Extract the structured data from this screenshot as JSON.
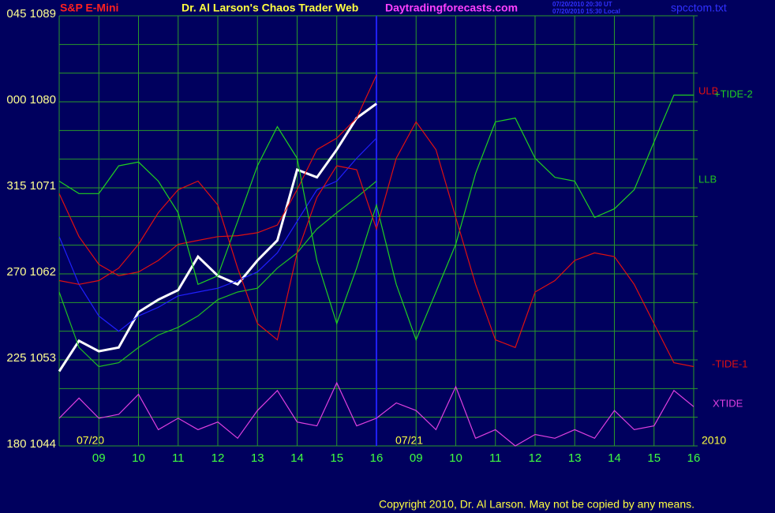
{
  "chart_data": {
    "type": "line",
    "instrument": "S&P E-Mini",
    "title": "Dr. Al Larson's Chaos Trader Web",
    "website": "Daytradingforecasts.com",
    "timestamps": [
      "07/20/2010 20:30 UT",
      "07/20/2010 15:30 Local"
    ],
    "file": "spcctom.txt",
    "date_labels": [
      "07/20",
      "07/21"
    ],
    "year": "2010",
    "copyright": "Copyright 2010, Dr. Al Larson. May not be copied by any means.",
    "x": [
      8,
      8.5,
      9,
      9.5,
      10,
      10.5,
      11,
      11.5,
      12,
      12.5,
      13,
      13.5,
      14,
      14.5,
      15,
      15.5,
      16,
      16.5,
      17,
      17.5,
      18,
      18.5,
      19,
      19.5,
      20,
      20.5,
      21,
      21.5,
      22,
      22.5,
      23,
      23.5,
      24
    ],
    "xlim": [
      8,
      24.1
    ],
    "xticks": [
      {
        "value": 9,
        "label": "09"
      },
      10,
      11,
      12,
      13,
      14,
      15,
      16,
      {
        "value": 17,
        "label": "09"
      },
      {
        "value": 18,
        "label": "10"
      },
      {
        "value": 19,
        "label": "11"
      },
      {
        "value": 20,
        "label": "12"
      },
      {
        "value": 21,
        "label": "13"
      },
      {
        "value": 22,
        "label": "14"
      },
      {
        "value": 23,
        "label": "15"
      },
      {
        "value": 24,
        "label": "16"
      }
    ],
    "ylim": [
      1044,
      1089
    ],
    "yticks": [
      {
        "value": 1089,
        "label": "045 1089"
      },
      {
        "value": 1080,
        "label": "000 1080"
      },
      {
        "value": 1071,
        "label": "315 1071"
      },
      {
        "value": 1062,
        "label": "270 1062"
      },
      {
        "value": 1053,
        "label": "225 1053"
      },
      {
        "value": 1044,
        "label": "180 1044"
      }
    ],
    "ygrid": [
      1044,
      1047,
      1050,
      1053,
      1056,
      1059,
      1062,
      1065,
      1068,
      1071,
      1074,
      1077,
      1080,
      1083,
      1086,
      1089
    ],
    "grid": true,
    "now_x": 16,
    "series": [
      {
        "color": "#ffffff",
        "values": [
          1051.8,
          1055.0,
          1053.9,
          1054.3,
          1058.0,
          1059.3,
          1060.3,
          1063.8,
          1061.8,
          1060.9,
          1063.4,
          1065.5,
          1072.9,
          1072.1,
          1075.0,
          1078.3,
          1079.8,
          null,
          null,
          null,
          null,
          null,
          null,
          null,
          null,
          null,
          null,
          null,
          null,
          null,
          null,
          null,
          null
        ]
      },
      {
        "color": "#2020ff",
        "values": [
          1065.9,
          1060.9,
          1057.6,
          1056.0,
          1057.6,
          1058.5,
          1059.7,
          1060.1,
          1060.5,
          1061.3,
          1062.2,
          1064.2,
          1067.5,
          1070.8,
          1071.7,
          1074.1,
          1076.2,
          null,
          null,
          null,
          null,
          null,
          null,
          null,
          null,
          null,
          null,
          null,
          null,
          null,
          null,
          null,
          null
        ]
      },
      {
        "name": "ULB",
        "color": "#e01010",
        "values": [
          1070.4,
          1065.9,
          1063.0,
          1061.8,
          1062.2,
          1063.4,
          1065.1,
          1065.5,
          1065.9,
          1066.0,
          1066.3,
          1067.1,
          1070.8,
          1075.0,
          1076.2,
          1078.3,
          1082.8,
          null,
          null,
          null,
          null,
          null,
          null,
          null,
          null,
          null,
          null,
          null,
          null,
          null,
          null,
          null,
          null
        ]
      },
      {
        "name": "LLB",
        "color": "#20c020",
        "values": [
          1060.1,
          1054.3,
          1052.3,
          1052.7,
          1054.3,
          1055.6,
          1056.4,
          1057.6,
          1059.3,
          1060.1,
          1060.5,
          1062.6,
          1064.2,
          1066.7,
          1068.4,
          1070.0,
          1071.7,
          null,
          null,
          null,
          null,
          null,
          null,
          null,
          null,
          null,
          null,
          null,
          null,
          null,
          null,
          null,
          null
        ]
      },
      {
        "name": "+TIDE-2",
        "color": "#20d020",
        "values": [
          1071.7,
          1070.4,
          1070.4,
          1073.3,
          1073.7,
          1071.7,
          1068.4,
          1060.9,
          1061.8,
          1067.5,
          1073.3,
          1077.4,
          1074.1,
          1063.4,
          1056.8,
          1062.6,
          1069.2,
          1060.9,
          1055.1,
          1060.1,
          1065.1,
          1072.5,
          1077.9,
          1078.3,
          1074.1,
          1072.1,
          1071.7,
          1067.9,
          1068.8,
          1070.8,
          1075.8,
          1080.7,
          1080.7
        ]
      },
      {
        "name": "-TIDE-1",
        "color": "#e01010",
        "values": [
          1061.3,
          1060.9,
          1061.3,
          1062.6,
          1065.1,
          1068.4,
          1070.8,
          1071.7,
          1069.2,
          1062.6,
          1056.8,
          1055.1,
          1064.2,
          1070.0,
          1073.3,
          1072.9,
          1066.7,
          1074.1,
          1077.9,
          1075.0,
          1067.9,
          1060.9,
          1055.1,
          1054.3,
          1060.1,
          1061.3,
          1063.4,
          1064.2,
          1063.8,
          1060.9,
          1056.8,
          1052.7,
          1052.3
        ]
      },
      {
        "name": "XTIDE",
        "color": "#e040e0",
        "values": [
          1046.9,
          1049.0,
          1046.9,
          1047.3,
          1049.4,
          1045.7,
          1046.9,
          1045.7,
          1046.5,
          1044.8,
          1047.7,
          1049.8,
          1046.5,
          1046.1,
          1050.6,
          1046.1,
          1046.9,
          1048.5,
          1047.7,
          1045.7,
          1050.2,
          1044.8,
          1045.7,
          1044.0,
          1045.2,
          1044.8,
          1045.7,
          1044.8,
          1047.7,
          1045.7,
          1046.1,
          1049.8,
          1048.1
        ]
      }
    ]
  }
}
